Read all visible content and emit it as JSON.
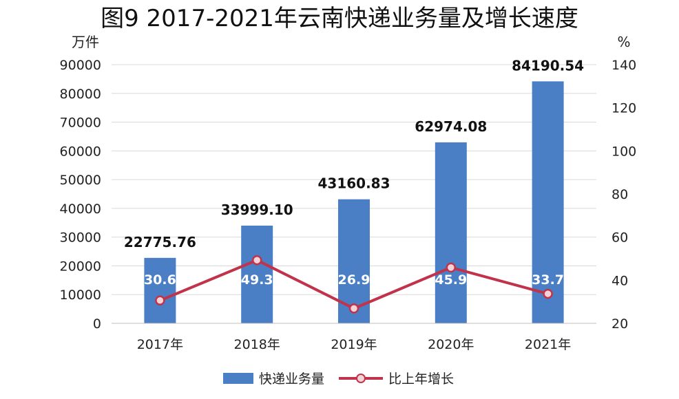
{
  "chart_data": {
    "type": "bar+line",
    "title": "图9 2017-2021年云南快递业务量及增长速度",
    "left_unit": "万件",
    "right_unit": "%",
    "categories": [
      "2017年",
      "2018年",
      "2019年",
      "2020年",
      "2021年"
    ],
    "bar_series": {
      "name": "快递业务量",
      "values": [
        22775.76,
        33999.1,
        43160.83,
        62974.08,
        84190.54
      ],
      "labels": [
        "22775.76",
        "33999.10",
        "43160.83",
        "62974.08",
        "84190.54"
      ],
      "color": "#4a7fc6"
    },
    "line_series": {
      "name": "比上年增长",
      "values": [
        30.6,
        49.3,
        26.9,
        45.9,
        33.7
      ],
      "labels": [
        "30.6",
        "49.3",
        "26.9",
        "45.9",
        "33.7"
      ],
      "color": "#c0334a"
    },
    "left_axis": {
      "range": [
        0,
        90000
      ],
      "ticks": [
        "0",
        "10000",
        "20000",
        "30000",
        "40000",
        "50000",
        "60000",
        "70000",
        "80000",
        "90000"
      ]
    },
    "right_axis": {
      "range": [
        20,
        140
      ],
      "ticks": [
        "20",
        "40",
        "60",
        "80",
        "100",
        "120",
        "140"
      ]
    },
    "grid": true,
    "legend_position": "bottom"
  }
}
